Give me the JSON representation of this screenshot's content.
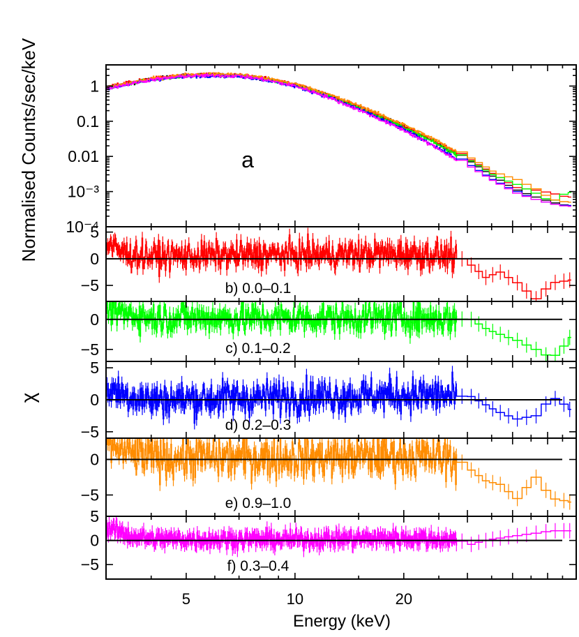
{
  "chart_data": {
    "type": "line",
    "xlabel": "Energy (keV)",
    "x_scale": "log",
    "xlim": [
      3.0,
      60.0
    ],
    "x_ticks": [
      "5",
      "10",
      "20"
    ],
    "series_colors": [
      "#000000",
      "#ff0000",
      "#00ff00",
      "#0000ff",
      "#ff8c00",
      "#ff00ff"
    ],
    "panels": [
      {
        "id": "a",
        "label": "a",
        "ylabel": "Normalised Counts/sec/keV",
        "y_scale": "log",
        "ylim": [
          0.0001,
          4
        ],
        "y_ticks": [
          "1",
          "0.1",
          "0.01",
          "10⁻³",
          "10⁻⁴"
        ],
        "series": [
          {
            "color": "#000000",
            "x": [
              3.0,
              4.0,
              5.0,
              6.0,
              7.0,
              8.0,
              10.0,
              12.0,
              15.0,
              20.0,
              25.0,
              30.0,
              35.0,
              40.0,
              45.0,
              50.0,
              55.0
            ],
            "y": [
              0.9,
              1.6,
              2.0,
              2.1,
              2.0,
              1.7,
              1.1,
              0.6,
              0.25,
              0.07,
              0.022,
              0.007,
              0.0025,
              0.0011,
              0.0007,
              0.0005,
              0.0004
            ]
          },
          {
            "color": "#ff0000",
            "x": [
              3.0,
              4.0,
              5.0,
              6.0,
              7.0,
              8.0,
              10.0,
              12.0,
              15.0,
              20.0,
              25.0,
              30.0,
              35.0,
              40.0,
              45.0,
              50.0,
              55.0
            ],
            "y": [
              0.95,
              1.65,
              2.05,
              2.15,
              2.05,
              1.75,
              1.12,
              0.62,
              0.26,
              0.072,
              0.024,
              0.008,
              0.003,
              0.0013,
              0.0011,
              0.0009,
              0.0007
            ]
          },
          {
            "color": "#00ff00",
            "x": [
              3.0,
              4.0,
              5.0,
              6.0,
              7.0,
              8.0,
              10.0,
              12.0,
              15.0,
              20.0,
              25.0,
              30.0,
              35.0,
              40.0,
              45.0,
              50.0,
              55.0
            ],
            "y": [
              0.88,
              1.55,
              1.95,
              2.05,
              1.95,
              1.65,
              1.05,
              0.58,
              0.24,
              0.066,
              0.021,
              0.0075,
              0.0028,
              0.0016,
              0.0009,
              0.0005,
              0.00095
            ]
          },
          {
            "color": "#0000ff",
            "x": [
              3.0,
              4.0,
              5.0,
              6.0,
              7.0,
              8.0,
              10.0,
              12.0,
              15.0,
              20.0,
              25.0,
              30.0,
              35.0,
              40.0,
              45.0,
              50.0,
              55.0
            ],
            "y": [
              0.85,
              1.5,
              1.9,
              2.0,
              1.9,
              1.6,
              1.0,
              0.55,
              0.22,
              0.058,
              0.017,
              0.0055,
              0.002,
              0.001,
              0.0006,
              0.00045,
              0.0004
            ]
          },
          {
            "color": "#ff8c00",
            "x": [
              3.0,
              4.0,
              5.0,
              6.0,
              7.0,
              8.0,
              10.0,
              12.0,
              15.0,
              20.0,
              25.0,
              30.0,
              35.0,
              40.0,
              45.0,
              50.0,
              55.0
            ],
            "y": [
              0.92,
              1.62,
              2.1,
              2.2,
              2.1,
              1.8,
              1.15,
              0.65,
              0.28,
              0.08,
              0.026,
              0.009,
              0.0035,
              0.0022,
              0.0012,
              0.0006,
              0.0005
            ]
          },
          {
            "color": "#ff00ff",
            "x": [
              3.0,
              4.0,
              5.0,
              6.0,
              7.0,
              8.0,
              10.0,
              12.0,
              15.0,
              20.0,
              25.0,
              30.0,
              35.0,
              40.0,
              45.0,
              50.0,
              55.0
            ],
            "y": [
              0.86,
              1.52,
              1.92,
              2.0,
              1.92,
              1.6,
              1.0,
              0.54,
              0.21,
              0.055,
              0.016,
              0.005,
              0.0019,
              0.0009,
              0.0006,
              0.00045,
              0.00038
            ]
          }
        ]
      },
      {
        "id": "b",
        "label": "b) 0.0–0.1",
        "color": "#ff0000",
        "ylim": [
          -8,
          6
        ],
        "y_ticks": [
          "5",
          "0",
          "−5"
        ],
        "noise": 1.3,
        "trend_x": [
          3.0,
          3.4,
          4.0,
          10.0,
          20.0,
          27.0,
          30.0,
          33.0,
          36.0,
          40.0,
          45.0,
          50.0,
          57.0
        ],
        "trend_y": [
          2.6,
          1.0,
          0.5,
          0.8,
          1.0,
          0.6,
          -1.2,
          -3.5,
          -2.5,
          -4.5,
          -7.5,
          -4.5,
          -4.0
        ]
      },
      {
        "id": "c",
        "label": "c) 0.1–0.2",
        "color": "#00ff00",
        "ylim": [
          -7,
          3
        ],
        "y_ticks": [
          "0",
          "−5"
        ],
        "noise": 1.3,
        "trend_x": [
          3.0,
          3.4,
          4.0,
          10.0,
          20.0,
          30.0,
          33.0,
          36.0,
          40.0,
          45.0,
          50.0,
          57.0
        ],
        "trend_y": [
          1.5,
          1.0,
          0.3,
          0.2,
          0.3,
          0.0,
          -1.5,
          -2.5,
          -3.5,
          -5.0,
          -6.5,
          -3.0
        ]
      },
      {
        "id": "d",
        "label": "d) 0.2–0.3",
        "color": "#0000ff",
        "ylim": [
          -6,
          6
        ],
        "y_ticks": [
          "5",
          "0",
          "−5"
        ],
        "noise": 1.4,
        "trend_x": [
          3.0,
          3.4,
          4.0,
          10.0,
          20.0,
          30.0,
          33.0,
          36.0,
          40.0,
          45.0,
          50.0,
          57.0
        ],
        "trend_y": [
          1.8,
          0.8,
          0.0,
          0.5,
          0.8,
          0.5,
          -0.8,
          -2.0,
          -3.0,
          -2.5,
          0.5,
          -1.5
        ]
      },
      {
        "id": "e",
        "label": "e) 0.9–1.0",
        "color": "#ff8c00",
        "ylim": [
          -8,
          3
        ],
        "y_ticks": [
          "0",
          "−5"
        ],
        "noise": 1.5,
        "trend_x": [
          3.0,
          3.4,
          4.0,
          10.0,
          20.0,
          27.0,
          30.0,
          33.0,
          36.0,
          40.0,
          45.0,
          50.0,
          57.0
        ],
        "trend_y": [
          2.5,
          1.0,
          0.3,
          0.3,
          0.5,
          0.2,
          -1.5,
          -3.0,
          -3.5,
          -5.5,
          -2.5,
          -5.5,
          -6.0
        ]
      },
      {
        "id": "f",
        "label": "f) 0.3–0.4",
        "color": "#ff00ff",
        "ylim": [
          -8,
          5
        ],
        "y_ticks": [
          "5",
          "0",
          "−5"
        ],
        "noise": 0.9,
        "trend_x": [
          3.0,
          3.4,
          4.0,
          10.0,
          20.0,
          27.0,
          30.0,
          33.0,
          36.0,
          40.0,
          45.0,
          50.0,
          57.0
        ],
        "trend_y": [
          2.8,
          1.2,
          0.3,
          0.2,
          0.5,
          0.2,
          -0.8,
          0.0,
          0.5,
          1.0,
          1.5,
          2.0,
          2.0
        ]
      }
    ],
    "shared_ylabel": "χ"
  }
}
